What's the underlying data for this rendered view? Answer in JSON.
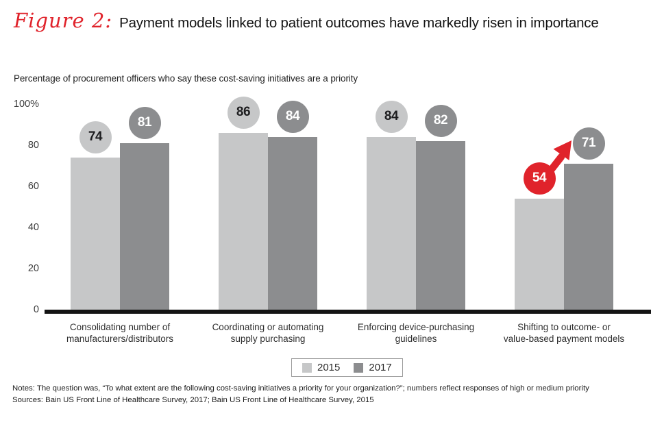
{
  "figure": {
    "label": "Figure 2:",
    "title": "Payment models linked to patient outcomes have markedly risen in importance"
  },
  "subtitle": "Percentage of procurement officers who say these cost-saving initiatives are a priority",
  "colors": {
    "series_2015": "#c6c7c8",
    "series_2017": "#8c8d8f",
    "highlight_red": "#e0232b",
    "axis": "#141414",
    "circle_text_light": "#1d1d1f",
    "circle_text_dark": "#ffffff"
  },
  "chart_data": {
    "type": "bar",
    "title": "Percentage of procurement officers who say these cost-saving initiatives are a priority",
    "categories": [
      "Consolidating number of manufacturers/distributors",
      "Coordinating or automating supply purchasing",
      "Enforcing device-purchasing guidelines",
      "Shifting to outcome- or value-based payment models"
    ],
    "category_lines": [
      [
        "Consolidating number of",
        "manufacturers/distributors"
      ],
      [
        "Coordinating or automating",
        "supply purchasing"
      ],
      [
        "Enforcing device-purchasing",
        "guidelines"
      ],
      [
        "Shifting to outcome- or",
        "value-based payment models"
      ]
    ],
    "series": [
      {
        "name": "2015",
        "values": [
          74,
          86,
          84,
          54
        ]
      },
      {
        "name": "2017",
        "values": [
          81,
          84,
          82,
          71
        ]
      }
    ],
    "xlabel": "",
    "ylabel": "",
    "ylim": [
      0,
      100
    ],
    "yticks": [
      {
        "value": 0,
        "label": "0"
      },
      {
        "value": 20,
        "label": "20"
      },
      {
        "value": 40,
        "label": "40"
      },
      {
        "value": 60,
        "label": "60"
      },
      {
        "value": 80,
        "label": "80"
      },
      {
        "value": 100,
        "label": "100%"
      }
    ],
    "grid": false,
    "legend_position": "bottom-center",
    "annotations": [
      {
        "type": "arrow",
        "category": "Shifting to outcome- or value-based payment models",
        "from_series": "2015",
        "from_value": 54,
        "to_series": "2017",
        "to_value": 71,
        "color": "#e0232b",
        "note": "2015 value shown in red circle with red arrow rising toward 2017 value"
      }
    ]
  },
  "legend": {
    "items": [
      {
        "label": "2015",
        "color": "#c6c7c8"
      },
      {
        "label": "2017",
        "color": "#8c8d8f"
      }
    ]
  },
  "notes": "Notes: The question was, “To what extent are the following cost-saving initiatives a priority for your organization?”; numbers reflect responses of high or medium priority",
  "sources": "Sources: Bain US Front Line of Healthcare Survey, 2017; Bain US Front Line of Healthcare Survey, 2015"
}
